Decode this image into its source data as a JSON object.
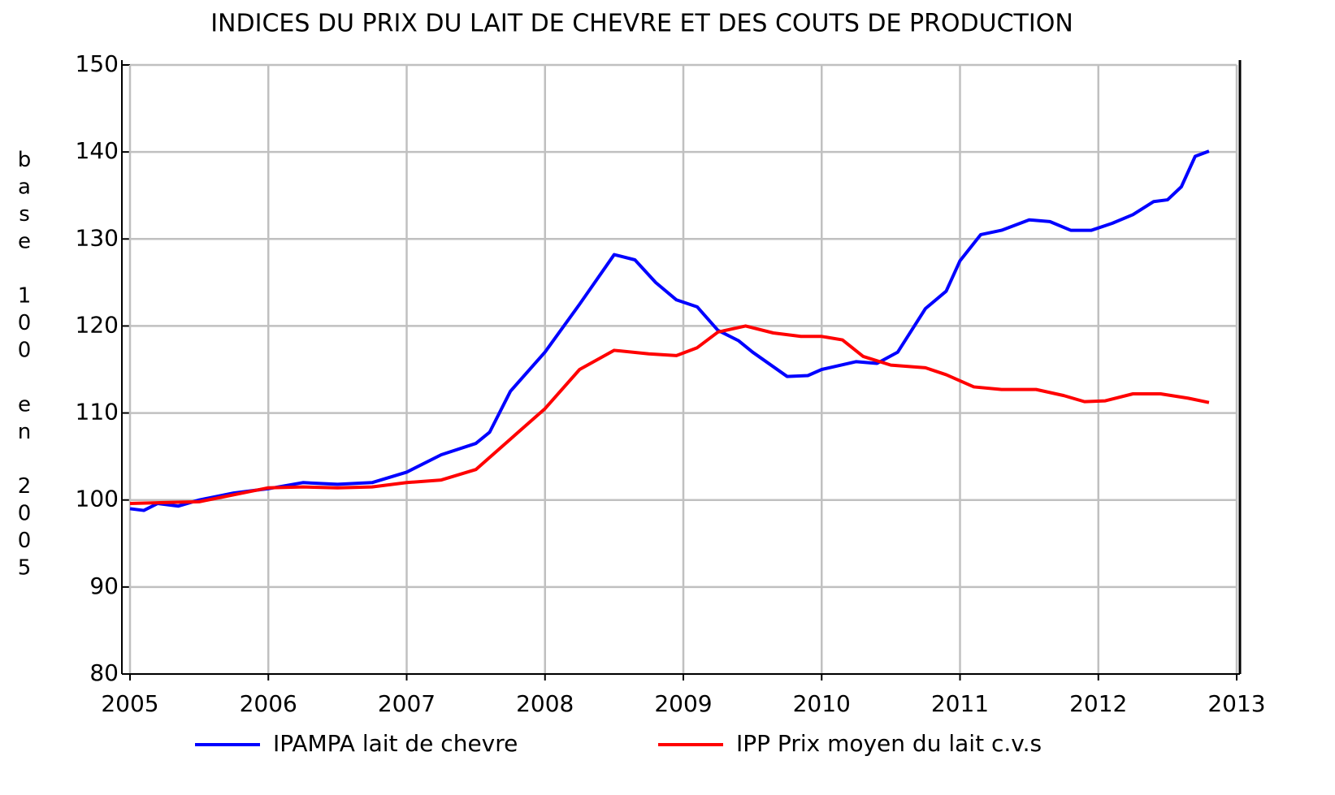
{
  "chart_data": {
    "type": "line",
    "title": "INDICES DU PRIX DU LAIT DE CHEVRE ET DES COUTS DE PRODUCTION",
    "ylabel": "base 100 en 2005",
    "xlim": [
      2005,
      2013
    ],
    "xticks": [
      2005,
      2006,
      2007,
      2008,
      2009,
      2010,
      2011,
      2012,
      2013
    ],
    "ylim": [
      80,
      150
    ],
    "yticks": [
      80,
      90,
      100,
      110,
      120,
      130,
      140,
      150
    ],
    "grid": true,
    "legend": "bottom",
    "series": [
      {
        "name": "IPAMPA lait de chevre",
        "color": "#0000ff",
        "x": [
          2005.0,
          2005.1,
          2005.2,
          2005.35,
          2005.5,
          2005.75,
          2006.0,
          2006.25,
          2006.5,
          2006.75,
          2007.0,
          2007.25,
          2007.5,
          2007.6,
          2007.75,
          2008.0,
          2008.25,
          2008.5,
          2008.65,
          2008.8,
          2008.95,
          2009.1,
          2009.25,
          2009.4,
          2009.5,
          2009.75,
          2009.9,
          2010.0,
          2010.25,
          2010.4,
          2010.55,
          2010.75,
          2010.9,
          2011.0,
          2011.15,
          2011.3,
          2011.5,
          2011.65,
          2011.8,
          2011.95,
          2012.1,
          2012.25,
          2012.4,
          2012.5,
          2012.6,
          2012.7,
          2012.8
        ],
        "values": [
          99,
          98.8,
          99.6,
          99.3,
          100,
          100.8,
          101.3,
          102,
          101.8,
          102,
          103.2,
          105.2,
          106.5,
          107.8,
          112.5,
          117,
          122.5,
          128.2,
          127.6,
          125,
          123,
          122.2,
          119.5,
          118.3,
          117,
          114.2,
          114.3,
          115,
          115.9,
          115.7,
          117,
          122,
          124,
          127.5,
          130.5,
          131,
          132.2,
          132,
          131,
          131,
          131.8,
          132.8,
          134.3,
          134.5,
          136,
          139.5,
          140.1
        ]
      },
      {
        "name": "IPP Prix moyen du lait c.v.s",
        "color": "#ff0000",
        "x": [
          2005.0,
          2005.25,
          2005.5,
          2005.75,
          2006.0,
          2006.25,
          2006.5,
          2006.75,
          2007.0,
          2007.25,
          2007.5,
          2007.75,
          2008.0,
          2008.25,
          2008.5,
          2008.75,
          2008.95,
          2009.1,
          2009.25,
          2009.45,
          2009.65,
          2009.85,
          2010.0,
          2010.15,
          2010.3,
          2010.5,
          2010.75,
          2010.9,
          2011.1,
          2011.3,
          2011.55,
          2011.75,
          2011.9,
          2012.05,
          2012.25,
          2012.45,
          2012.65,
          2012.8
        ],
        "values": [
          99.6,
          99.7,
          99.8,
          100.6,
          101.4,
          101.5,
          101.4,
          101.5,
          102,
          102.3,
          103.5,
          107,
          110.5,
          115,
          117.2,
          116.8,
          116.6,
          117.5,
          119.3,
          120,
          119.2,
          118.8,
          118.8,
          118.4,
          116.5,
          115.5,
          115.2,
          114.4,
          113,
          112.7,
          112.7,
          112,
          111.3,
          111.4,
          112.2,
          112.2,
          111.7,
          111.2
        ]
      }
    ]
  }
}
